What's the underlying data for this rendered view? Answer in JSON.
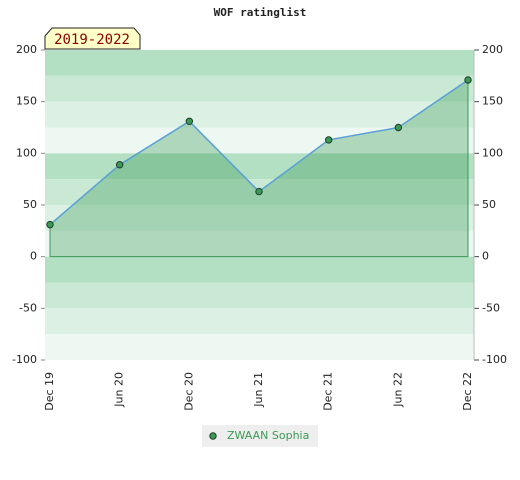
{
  "chart_data": {
    "type": "area",
    "title": "WOF ratinglist",
    "annotation": "2019-2022",
    "categories": [
      "Dec 19",
      "Jun 20",
      "Dec 20",
      "Jun 21",
      "Dec 21",
      "Jun 22",
      "Dec 22"
    ],
    "series": [
      {
        "name": "ZWAAN Sophia",
        "color": "#3a9a55",
        "line_color": "#5aa0d8",
        "values": [
          31,
          89,
          131,
          63,
          113,
          125,
          171
        ]
      }
    ],
    "ylim": [
      -100,
      200
    ],
    "yticks": [
      -100,
      -50,
      0,
      50,
      100,
      150,
      200
    ],
    "y2lim": [
      -100,
      200
    ],
    "y2ticks": [
      -100,
      -50,
      0,
      50,
      100,
      150,
      200
    ],
    "grid": true
  }
}
